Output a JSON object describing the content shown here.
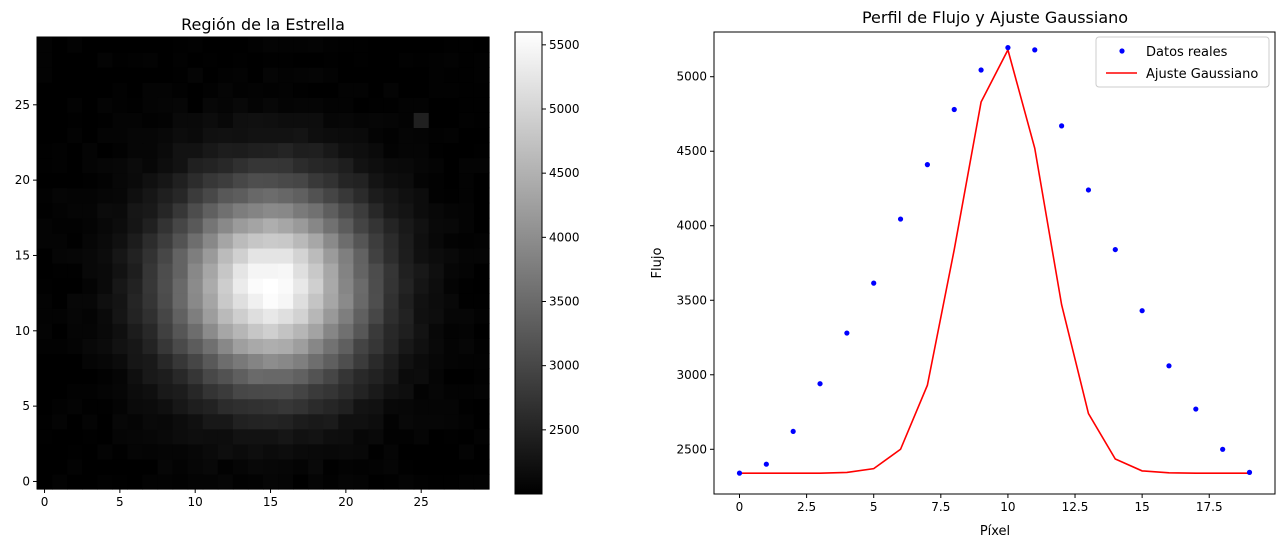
{
  "figure": {
    "background": "#ffffff"
  },
  "chart_data": [
    {
      "type": "heatmap",
      "title": "Región de la Estrella",
      "xlabel": "",
      "ylabel": "",
      "xlim": [
        -0.5,
        29.5
      ],
      "ylim": [
        -0.5,
        29.5
      ],
      "origin": "lower",
      "grid_size": [
        30,
        30
      ],
      "colormap": "gray",
      "x_ticks": [
        0,
        5,
        10,
        15,
        20,
        25
      ],
      "y_ticks": [
        0,
        5,
        10,
        15,
        20,
        25
      ],
      "peak": {
        "x": 15,
        "y": 13,
        "value": 5600
      },
      "sigma_pixels": 4.5,
      "background_level": 2000,
      "hot_pixel": {
        "x": 25,
        "y": 24,
        "value": 2450
      },
      "colorbar": {
        "vmin": 2000,
        "vmax": 5600,
        "ticks": [
          2500,
          3000,
          3500,
          4000,
          4500,
          5000,
          5500
        ]
      }
    },
    {
      "type": "line",
      "title": "Perfil de Flujo y Ajuste Gaussiano",
      "xlabel": "Píxel",
      "ylabel": "Flujo",
      "xlim": [
        -0.95,
        19.95
      ],
      "ylim": [
        2200,
        5300
      ],
      "x_ticks": [
        0.0,
        2.5,
        5.0,
        7.5,
        10.0,
        12.5,
        15.0,
        17.5
      ],
      "y_ticks": [
        2500,
        3000,
        3500,
        4000,
        4500,
        5000
      ],
      "legend_position": "top-right",
      "grid": false,
      "series": [
        {
          "name": "Datos reales",
          "style": "points",
          "color": "#0000ff",
          "x": [
            0,
            1,
            2,
            3,
            4,
            5,
            6,
            7,
            8,
            9,
            10,
            11,
            12,
            13,
            14,
            15,
            16,
            17,
            18,
            19
          ],
          "values": [
            2340,
            2400,
            2620,
            2940,
            3280,
            3615,
            4045,
            4410,
            4780,
            5045,
            5195,
            5180,
            4670,
            4240,
            3840,
            3430,
            3060,
            2770,
            2500,
            2345
          ]
        },
        {
          "name": "Ajuste Gaussiano",
          "style": "line",
          "color": "#ff0000",
          "x": [
            0,
            1,
            2,
            3,
            4,
            5,
            6,
            7,
            8,
            9,
            10,
            11,
            12,
            13,
            14,
            15,
            16,
            17,
            18,
            19
          ],
          "values": [
            2340,
            2340,
            2340,
            2340,
            2345,
            2370,
            2500,
            2930,
            3840,
            4830,
            5180,
            4520,
            3470,
            2740,
            2435,
            2355,
            2342,
            2340,
            2340,
            2340
          ]
        }
      ]
    }
  ]
}
